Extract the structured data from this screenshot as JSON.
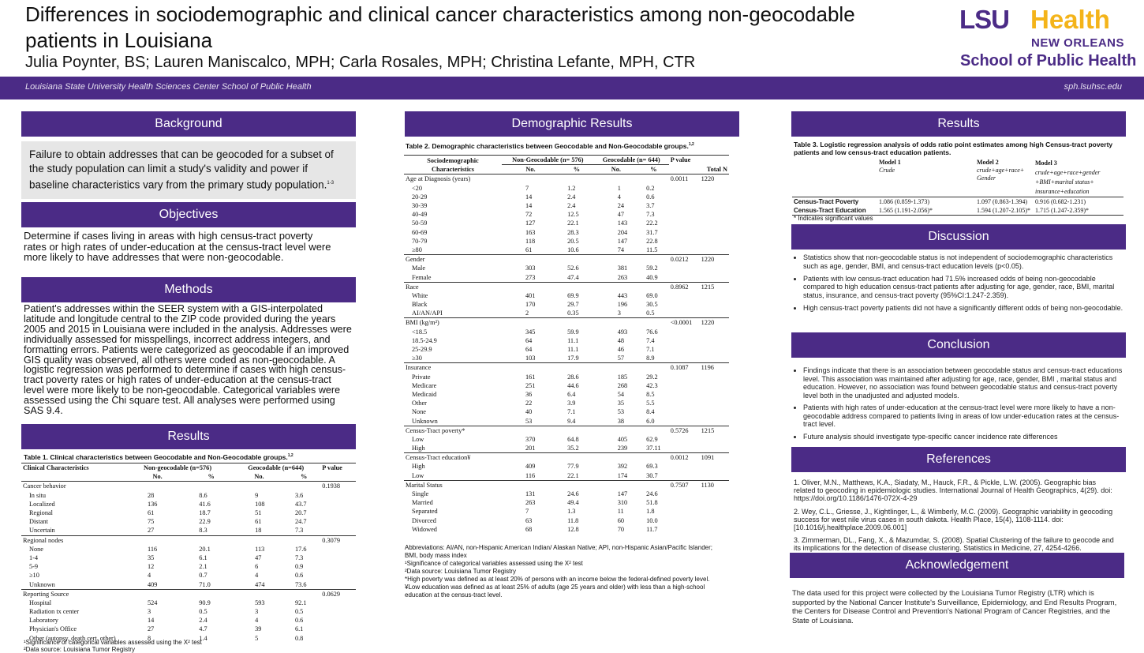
{
  "header": {
    "title": "Differences in sociodemographic and clinical cancer characteristics among non-geocodable patients in Louisiana",
    "authors": "Julia Poynter, BS; Lauren Maniscalco, MPH; Carla Rosales, MPH; Christina Lefante, MPH, CTR",
    "logo_lsu": "LSU",
    "logo_health": "Health",
    "logo_new_orleans": "NEW ORLEANS",
    "logo_school": "School of Public Health",
    "banner_left": "Louisiana State University Health Sciences Center School of Public Health",
    "banner_right": "sph.lsuhsc.edu",
    "brand_purple": "#4b2b86",
    "brand_gold": "#f4b41a"
  },
  "col1": {
    "background_title": "Background",
    "background_text": "Failure to obtain addresses that can be geocoded for a subset of the study population can limit a study's validity and power if baseline characteristics vary from the primary study population.",
    "background_sup": "1-3",
    "objectives_title": "Objectives",
    "objectives_text": "Determine if cases living in areas with high census-tract poverty rates or high rates of under-education at the census-tract level were more likely to have addresses that were non-geocodable.",
    "methods_title": "Methods",
    "methods_text": "Patient's addresses within the SEER system with a GIS-interpolated latitude and longitude central to the ZIP code provided during the years 2005 and 2015 in Louisiana were included in the analysis. Addresses were individually assessed for misspellings, incorrect address integers, and formatting errors. Patients were categorized as geocodable if an improved GIS quality was observed, all others were coded as non-geocodable. A logistic regression was performed to determine if cases with high census-tract poverty rates or high rates of under-education at the census-tract level were more likely to be non-geocodable. Categorical variables were assessed using the Chi square test. All analyses were performed using SAS 9.4.",
    "results_title": "Results",
    "table1": {
      "caption": "Table 1. Clinical characteristics between Geocodable and Non-Geocodable groups.",
      "caption_sup": "1,2",
      "h_char": "Clinical Characteristics",
      "h_ng": "Non-geocodable (n=576)",
      "h_g": "Geocodable (n=644)",
      "h_p": "P value",
      "h_no": "No.",
      "h_pct": "%",
      "rows": [
        [
          "Cancer behavior",
          "",
          "",
          "",
          "",
          "0.1938"
        ],
        [
          "In situ",
          "28",
          "8.6",
          "9",
          "3.6",
          ""
        ],
        [
          "Localized",
          "136",
          "41.6",
          "108",
          "43.7",
          ""
        ],
        [
          "Regional",
          "61",
          "18.7",
          "51",
          "20.7",
          ""
        ],
        [
          "Distant",
          "75",
          "22.9",
          "61",
          "24.7",
          ""
        ],
        [
          "Uncertain",
          "27",
          "8.3",
          "18",
          "7.3",
          ""
        ],
        [
          "Regional nodes",
          "",
          "",
          "",
          "",
          "0.3079"
        ],
        [
          "None",
          "116",
          "20.1",
          "113",
          "17.6",
          ""
        ],
        [
          "1-4",
          "35",
          "6.1",
          "47",
          "7.3",
          ""
        ],
        [
          "5-9",
          "12",
          "2.1",
          "6",
          "0.9",
          ""
        ],
        [
          "≥10",
          "4",
          "0.7",
          "4",
          "0.6",
          ""
        ],
        [
          "Unknown",
          "409",
          "71.0",
          "474",
          "73.6",
          ""
        ],
        [
          "Reporting Source",
          "",
          "",
          "",
          "",
          "0.0629"
        ],
        [
          "Hospital",
          "524",
          "90.9",
          "593",
          "92.1",
          ""
        ],
        [
          "Radiation tx center",
          "3",
          "0.5",
          "3",
          "0.5",
          ""
        ],
        [
          "Laboratory",
          "14",
          "2.4",
          "4",
          "0.6",
          ""
        ],
        [
          "Physician's Office",
          "27",
          "4.7",
          "39",
          "6.1",
          ""
        ],
        [
          "Other (autopsy, death cert. other)",
          "8",
          "1.4",
          "5",
          "0.8",
          ""
        ]
      ],
      "note1": "¹Significance of categorical variables assessed using the X² test",
      "note2": "²Data source: Louisiana Tumor Registry"
    }
  },
  "col2": {
    "title": "Demographic Results",
    "table2": {
      "caption": "Table 2. Demographic characteristics between Geocodable and Non-Geocodable groups.",
      "caption_sup": "1,2",
      "h_char": "Sociodemographic Characteristics",
      "h_ng": "Non-Geocodable (n= 576)",
      "h_g": "Geocodable (n= 644)",
      "h_p": "P value",
      "h_total": "Total N",
      "h_no": "No.",
      "h_pct": "%",
      "rows": [
        [
          "Age at Diagnosis (years)",
          "",
          "",
          "",
          "",
          "0.0011",
          "1220"
        ],
        [
          "<20",
          "7",
          "1.2",
          "1",
          "0.2",
          "",
          ""
        ],
        [
          "20-29",
          "14",
          "2.4",
          "4",
          "0.6",
          "",
          ""
        ],
        [
          "30-39",
          "14",
          "2.4",
          "24",
          "3.7",
          "",
          ""
        ],
        [
          "40-49",
          "72",
          "12.5",
          "47",
          "7.3",
          "",
          ""
        ],
        [
          "50-59",
          "127",
          "22.1",
          "143",
          "22.2",
          "",
          ""
        ],
        [
          "60-69",
          "163",
          "28.3",
          "204",
          "31.7",
          "",
          ""
        ],
        [
          "70-79",
          "118",
          "20.5",
          "147",
          "22.8",
          "",
          ""
        ],
        [
          "≥80",
          "61",
          "10.6",
          "74",
          "11.5",
          "",
          ""
        ],
        [
          "Gender",
          "",
          "",
          "",
          "",
          "0.0212",
          "1220"
        ],
        [
          "Male",
          "303",
          "52.6",
          "381",
          "59.2",
          "",
          ""
        ],
        [
          "Female",
          "273",
          "47.4",
          "263",
          "40.9",
          "",
          ""
        ],
        [
          "Race",
          "",
          "",
          "",
          "",
          "0.8962",
          "1215"
        ],
        [
          "White",
          "401",
          "69.9",
          "443",
          "69.0",
          "",
          ""
        ],
        [
          "Black",
          "170",
          "29.7",
          "196",
          "30.5",
          "",
          ""
        ],
        [
          "AI/AN/API",
          "2",
          "0.35",
          "3",
          "0.5",
          "",
          ""
        ],
        [
          "BMI (kg/m²)",
          "",
          "",
          "",
          "",
          "<0.0001",
          "1220"
        ],
        [
          "<18.5",
          "345",
          "59.9",
          "493",
          "76.6",
          "",
          ""
        ],
        [
          "18.5-24.9",
          "64",
          "11.1",
          "48",
          "7.4",
          "",
          ""
        ],
        [
          "25-29.9",
          "64",
          "11.1",
          "46",
          "7.1",
          "",
          ""
        ],
        [
          "≥30",
          "103",
          "17.9",
          "57",
          "8.9",
          "",
          ""
        ],
        [
          "Insurance",
          "",
          "",
          "",
          "",
          "0.1087",
          "1196"
        ],
        [
          "Private",
          "161",
          "28.6",
          "185",
          "29.2",
          "",
          ""
        ],
        [
          "Medicare",
          "251",
          "44.6",
          "268",
          "42.3",
          "",
          ""
        ],
        [
          "Medicaid",
          "36",
          "6.4",
          "54",
          "8.5",
          "",
          ""
        ],
        [
          "Other",
          "22",
          "3.9",
          "35",
          "5.5",
          "",
          ""
        ],
        [
          "None",
          "40",
          "7.1",
          "53",
          "8.4",
          "",
          ""
        ],
        [
          "Unknown",
          "53",
          "9.4",
          "38",
          "6.0",
          "",
          ""
        ],
        [
          "Census-Tract poverty*",
          "",
          "",
          "",
          "",
          "0.5726",
          "1215"
        ],
        [
          "Low",
          "370",
          "64.8",
          "405",
          "62.9",
          "",
          ""
        ],
        [
          "High",
          "201",
          "35.2",
          "239",
          "37.11",
          "",
          ""
        ],
        [
          "Census-Tract education¥",
          "",
          "",
          "",
          "",
          "0.0012",
          "1091"
        ],
        [
          "High",
          "409",
          "77.9",
          "392",
          "69.3",
          "",
          ""
        ],
        [
          "Low",
          "116",
          "22.1",
          "174",
          "30.7",
          "",
          ""
        ],
        [
          "Marital Status",
          "",
          "",
          "",
          "",
          "0.7507",
          "1130"
        ],
        [
          "Single",
          "131",
          "24.6",
          "147",
          "24.6",
          "",
          ""
        ],
        [
          "Married",
          "263",
          "49.4",
          "310",
          "51.8",
          "",
          ""
        ],
        [
          "Separated",
          "7",
          "1.3",
          "11",
          "1.8",
          "",
          ""
        ],
        [
          "Divorced",
          "63",
          "11.8",
          "60",
          "10.0",
          "",
          ""
        ],
        [
          "Widowed",
          "68",
          "12.8",
          "70",
          "11.7",
          "",
          ""
        ]
      ],
      "abbrev": "Abbreviations: AI/AN, non-Hispanic American Indian/ Alaskan Native; API, non-Hispanic Asian/Pacific Islander; BMI, body mass index",
      "note1": "¹Significance of categorical variables assessed using the X² test",
      "note2": "²Data source: Louisiana Tumor Registry",
      "note3": "*High poverty was defined as at least 20% of persons with an income below the federal-defined poverty level.",
      "note4": "¥Low education was defined as at least 25% of adults (age 25 years and older) with less than a high-school education at the census-tract level."
    }
  },
  "col3": {
    "results_title": "Results",
    "table3": {
      "caption": "Table 3. Logistic regression analysis of odds ratio point estimates among high Census-tract poverty patients and low census-tract education patients.",
      "m1": "Model 1",
      "m1d": "Crude",
      "m2": "Model 2",
      "m2d": "crude+age+race+ Gender",
      "m3": "Model 3",
      "m3d": "crude+age+race+gender +BMI+marital status+ insurance+education",
      "r1": [
        "Census-Tract Poverty",
        "1.086 (0.859-1.373)",
        "1.097 (0.863-1.394)",
        "0.916 (0.682-1.231)"
      ],
      "r2": [
        "Census-Tract Education",
        "1.565 (1.191-2.056)*",
        "1.594 (1.207-2.105)*",
        "1.715 (1.247-2.359)*"
      ],
      "note": "* Indicates significant values"
    },
    "discussion_title": "Discussion",
    "discussion": [
      "Statistics show that non-geocodable status is not independent of sociodemographic characteristics such as age, gender, BMI, and census-tract education levels (p<0.05).",
      "Patients with low census-tract education had 71.5% increased odds of being non-geocodable compared to high education census-tract patients after adjusting for age, gender, race, BMI, marital status, insurance, and census-tract poverty (95%CI:1.247-2.359).",
      "High census-tract poverty patients did not have a significantly different odds of being non-geocodable."
    ],
    "conclusion_title": "Conclusion",
    "conclusion": [
      "Findings indicate that there is an association between geocodable status and census-tract educations level. This association was maintained after adjusting for age, race, gender, BMI , marital status and education. However, no association was found between geocodable status and census-tract poverty level both in the unadjusted and adjusted models.",
      "Patients with high rates of under-education at the census-tract level were more likely to have a non-geocodable address compared to patients living in areas of low under-education rates at the census-tract level.",
      "Future analysis should investigate type-specific cancer incidence rate differences"
    ],
    "references_title": "References",
    "references": [
      "1. Oliver, M.N., Matthews, K.A., Siadaty, M., Hauck, F.R., & Pickle, L.W. (2005). Geographic bias related to geocoding in epidemiologic studies. International Journal of Health Geographics, 4(29). doi: https://doi.org/10.1186/1476-072X-4-29",
      "2. Wey, C.L., Griesse, J., Kightlinger, L., & Wimberly, M.C. (2009). Geographic variability in geocoding success for west nile virus cases in south dakota. Health Place, 15(4), 1108-1114. doi: [10.1016/j.healthplace.2009.06.001]",
      "3. Zimmerman, DL., Fang, X., & Mazumdar, S. (2008). Spatial Clustering of the failure to geocode and its implications for the detection of disease clustering. Statistics in Medicine, 27, 4254-4266."
    ],
    "ack_title": "Acknowledgement",
    "ack_text": "The data used for this project were collected by the Louisiana Tumor Registry (LTR) which is supported by the National Cancer Institute's Surveillance, Epidemiology, and End Results Program, the Centers for Disease Control and Prevention's National Program of Cancer Registries, and the State of Louisiana."
  }
}
